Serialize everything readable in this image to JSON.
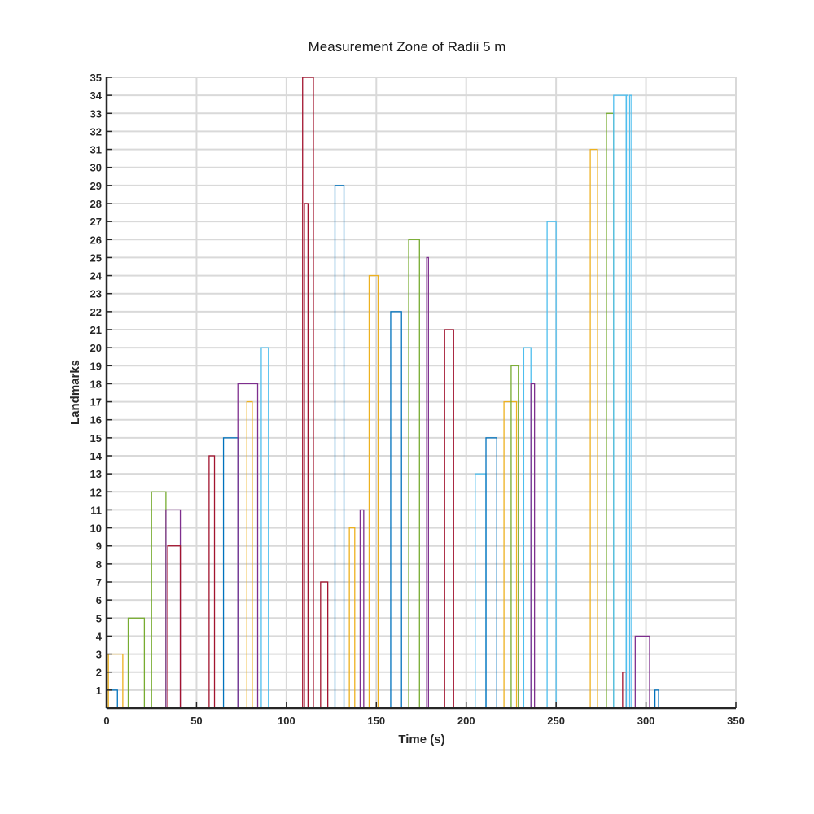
{
  "chart_data": {
    "type": "bar",
    "title": "Measurement Zone of Radii 5 m",
    "xlabel": "Time (s)",
    "ylabel": "Landmarks",
    "xlim": [
      0,
      350
    ],
    "ylim": [
      0,
      35
    ],
    "x_ticks": [
      "0",
      "50",
      "100",
      "150",
      "200",
      "250",
      "300",
      "350"
    ],
    "y_ticks": [
      "1",
      "2",
      "3",
      "4",
      "5",
      "6",
      "7",
      "8",
      "9",
      "10",
      "11",
      "12",
      "13",
      "14",
      "15",
      "16",
      "17",
      "18",
      "19",
      "20",
      "21",
      "22",
      "23",
      "24",
      "25",
      "26",
      "27",
      "28",
      "29",
      "30",
      "31",
      "32",
      "33",
      "34",
      "35"
    ],
    "grid": true,
    "legend": "none",
    "bars": [
      {
        "x_start": 0,
        "x_end": 6,
        "value": 1,
        "color": "#0072BD"
      },
      {
        "x_start": 1,
        "x_end": 9,
        "value": 3,
        "color": "#EDB120"
      },
      {
        "x_start": 12,
        "x_end": 21,
        "value": 5,
        "color": "#77AC30"
      },
      {
        "x_start": 25,
        "x_end": 33,
        "value": 12,
        "color": "#77AC30"
      },
      {
        "x_start": 33,
        "x_end": 41,
        "value": 11,
        "color": "#7E2F8E"
      },
      {
        "x_start": 34,
        "x_end": 41,
        "value": 9,
        "color": "#A2142F"
      },
      {
        "x_start": 57,
        "x_end": 60,
        "value": 14,
        "color": "#A2142F"
      },
      {
        "x_start": 65,
        "x_end": 73,
        "value": 15,
        "color": "#0072BD"
      },
      {
        "x_start": 73,
        "x_end": 84,
        "value": 18,
        "color": "#7E2F8E"
      },
      {
        "x_start": 78,
        "x_end": 81,
        "value": 17,
        "color": "#EDB120"
      },
      {
        "x_start": 86,
        "x_end": 90,
        "value": 20,
        "color": "#4DBEEE"
      },
      {
        "x_start": 109,
        "x_end": 115,
        "value": 35,
        "color": "#A2142F"
      },
      {
        "x_start": 110,
        "x_end": 112,
        "value": 28,
        "color": "#A2142F"
      },
      {
        "x_start": 119,
        "x_end": 123,
        "value": 7,
        "color": "#A2142F"
      },
      {
        "x_start": 127,
        "x_end": 132,
        "value": 29,
        "color": "#0072BD"
      },
      {
        "x_start": 135,
        "x_end": 138,
        "value": 10,
        "color": "#EDB120"
      },
      {
        "x_start": 141,
        "x_end": 143,
        "value": 11,
        "color": "#7E2F8E"
      },
      {
        "x_start": 146,
        "x_end": 151,
        "value": 24,
        "color": "#EDB120"
      },
      {
        "x_start": 158,
        "x_end": 164,
        "value": 22,
        "color": "#0072BD"
      },
      {
        "x_start": 168,
        "x_end": 174,
        "value": 26,
        "color": "#77AC30"
      },
      {
        "x_start": 178,
        "x_end": 179,
        "value": 25,
        "color": "#7E2F8E"
      },
      {
        "x_start": 188,
        "x_end": 193,
        "value": 21,
        "color": "#A2142F"
      },
      {
        "x_start": 205,
        "x_end": 211,
        "value": 13,
        "color": "#4DBEEE"
      },
      {
        "x_start": 211,
        "x_end": 217,
        "value": 15,
        "color": "#0072BD"
      },
      {
        "x_start": 221,
        "x_end": 228,
        "value": 17,
        "color": "#EDB120"
      },
      {
        "x_start": 225,
        "x_end": 229,
        "value": 19,
        "color": "#77AC30"
      },
      {
        "x_start": 232,
        "x_end": 236,
        "value": 20,
        "color": "#4DBEEE"
      },
      {
        "x_start": 236,
        "x_end": 238,
        "value": 18,
        "color": "#7E2F8E"
      },
      {
        "x_start": 245,
        "x_end": 250,
        "value": 27,
        "color": "#4DBEEE"
      },
      {
        "x_start": 269,
        "x_end": 273,
        "value": 31,
        "color": "#EDB120"
      },
      {
        "x_start": 278,
        "x_end": 282,
        "value": 33,
        "color": "#77AC30"
      },
      {
        "x_start": 282,
        "x_end": 289,
        "value": 34,
        "color": "#4DBEEE"
      },
      {
        "x_start": 287,
        "x_end": 289,
        "value": 2,
        "color": "#A2142F"
      },
      {
        "x_start": 289,
        "x_end": 290,
        "value": 34,
        "color": "#4DBEEE"
      },
      {
        "x_start": 291,
        "x_end": 292,
        "value": 34,
        "color": "#4DBEEE"
      },
      {
        "x_start": 294,
        "x_end": 302,
        "value": 4,
        "color": "#7E2F8E"
      },
      {
        "x_start": 305,
        "x_end": 307,
        "value": 1,
        "color": "#0072BD"
      }
    ]
  }
}
